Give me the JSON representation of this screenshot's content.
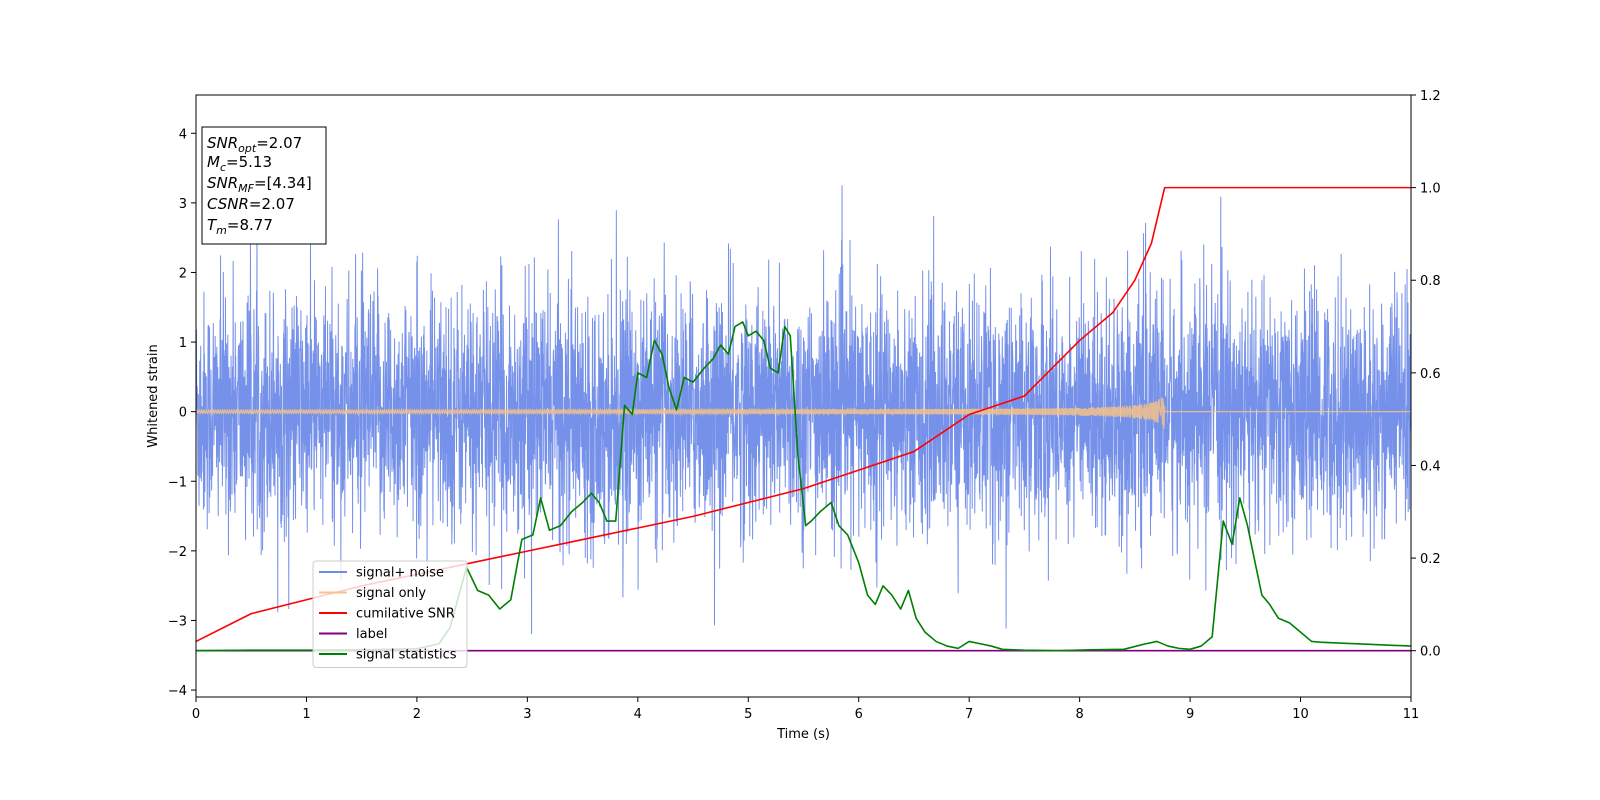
{
  "chart_data": {
    "type": "line",
    "title": "",
    "xlabel": "Time (s)",
    "ylabel": "Whitened strain",
    "xlim": [
      0,
      11
    ],
    "ylim_left": [
      -4.1,
      4.55
    ],
    "ylim_right": [
      -0.1,
      1.2
    ],
    "x_ticks": [
      0,
      1,
      2,
      3,
      4,
      5,
      6,
      7,
      8,
      9,
      10,
      11
    ],
    "x_tick_labels": [
      "0",
      "1",
      "2",
      "3",
      "4",
      "5",
      "6",
      "7",
      "8",
      "9",
      "10",
      "11"
    ],
    "y_left_ticks": [
      -4,
      -3,
      -2,
      -1,
      0,
      1,
      2,
      3,
      4
    ],
    "y_left_tick_labels": [
      "−4",
      "−3",
      "−2",
      "−1",
      "0",
      "1",
      "2",
      "3",
      "4"
    ],
    "y_right_ticks": [
      0.0,
      0.2,
      0.4,
      0.6,
      0.8,
      1.0,
      1.2
    ],
    "y_right_tick_labels": [
      "0.0",
      "0.2",
      "0.4",
      "0.6",
      "0.8",
      "1.0",
      "1.2"
    ],
    "grid": false,
    "legend_position": "lower-left",
    "series": [
      {
        "name": "signal+ noise",
        "axis": "left",
        "color": "#6f8be8",
        "style": "noise",
        "description_values": {
          "std": 0.85,
          "min": -3.7,
          "max": 4.18
        }
      },
      {
        "name": "signal only",
        "axis": "left",
        "color": "#f5c28a",
        "style": "chirp",
        "merger_time": 8.77
      },
      {
        "name": "cumilative SNR",
        "axis": "right",
        "color": "#ff0000",
        "x": [
          0,
          0.5,
          1,
          1.5,
          2,
          2.5,
          3,
          3.5,
          4,
          4.5,
          5,
          5.5,
          6,
          6.5,
          7,
          7.5,
          8,
          8.3,
          8.5,
          8.65,
          8.77,
          9,
          10,
          11
        ],
        "values": [
          0.02,
          0.08,
          0.11,
          0.14,
          0.165,
          0.19,
          0.215,
          0.24,
          0.265,
          0.29,
          0.32,
          0.35,
          0.39,
          0.43,
          0.51,
          0.55,
          0.67,
          0.73,
          0.8,
          0.88,
          1.0,
          1.0,
          1.0,
          1.0
        ]
      },
      {
        "name": "label",
        "axis": "right",
        "color": "#800080",
        "x": [
          0,
          11
        ],
        "values": [
          0,
          0
        ]
      },
      {
        "name": "signal statistics",
        "axis": "right",
        "color": "#008000",
        "x": [
          0,
          0.5,
          1,
          1.5,
          2,
          2.2,
          2.3,
          2.38,
          2.45,
          2.55,
          2.65,
          2.75,
          2.85,
          2.95,
          3.05,
          3.12,
          3.2,
          3.3,
          3.4,
          3.5,
          3.58,
          3.65,
          3.72,
          3.8,
          3.88,
          3.95,
          4.0,
          4.08,
          4.15,
          4.22,
          4.28,
          4.35,
          4.42,
          4.5,
          4.6,
          4.68,
          4.75,
          4.82,
          4.88,
          4.95,
          5.0,
          5.07,
          5.14,
          5.2,
          5.27,
          5.33,
          5.38,
          5.45,
          5.52,
          5.57,
          5.65,
          5.75,
          5.82,
          5.9,
          6.0,
          6.08,
          6.15,
          6.22,
          6.3,
          6.38,
          6.45,
          6.52,
          6.6,
          6.7,
          6.8,
          6.9,
          7.0,
          7.1,
          7.2,
          7.3,
          7.5,
          7.8,
          8.1,
          8.4,
          8.6,
          8.7,
          8.8,
          8.9,
          9.0,
          9.1,
          9.2,
          9.3,
          9.38,
          9.45,
          9.52,
          9.58,
          9.65,
          9.72,
          9.8,
          9.9,
          10.0,
          10.1,
          10.2,
          10.4,
          10.6,
          10.8,
          11.0
        ],
        "values": [
          0.0,
          0.001,
          0.001,
          0.002,
          0.004,
          0.015,
          0.05,
          0.12,
          0.18,
          0.13,
          0.12,
          0.09,
          0.11,
          0.24,
          0.25,
          0.33,
          0.26,
          0.27,
          0.3,
          0.32,
          0.34,
          0.32,
          0.28,
          0.28,
          0.53,
          0.51,
          0.6,
          0.59,
          0.67,
          0.64,
          0.57,
          0.52,
          0.59,
          0.58,
          0.61,
          0.63,
          0.66,
          0.64,
          0.7,
          0.71,
          0.68,
          0.69,
          0.67,
          0.61,
          0.6,
          0.7,
          0.68,
          0.42,
          0.27,
          0.28,
          0.3,
          0.32,
          0.27,
          0.25,
          0.19,
          0.12,
          0.1,
          0.14,
          0.12,
          0.09,
          0.13,
          0.07,
          0.04,
          0.02,
          0.01,
          0.005,
          0.02,
          0.015,
          0.01,
          0.003,
          0.001,
          0.0,
          0.002,
          0.003,
          0.015,
          0.02,
          0.01,
          0.005,
          0.003,
          0.01,
          0.03,
          0.28,
          0.23,
          0.33,
          0.27,
          0.2,
          0.12,
          0.1,
          0.07,
          0.06,
          0.04,
          0.02,
          0.018,
          0.016,
          0.014,
          0.012,
          0.01
        ]
      }
    ],
    "annotation_box": {
      "lines": [
        {
          "main": "SNR",
          "sub": "opt",
          "value": "=2.07"
        },
        {
          "main": "M",
          "sub": "c",
          "value": "=5.13"
        },
        {
          "main": "SNR",
          "sub": "MF",
          "value": "=[4.34]"
        },
        {
          "main": "CSNR",
          "sub": "",
          "value": "=2.07"
        },
        {
          "main": "T",
          "sub": "m",
          "value": "=8.77"
        }
      ]
    }
  }
}
